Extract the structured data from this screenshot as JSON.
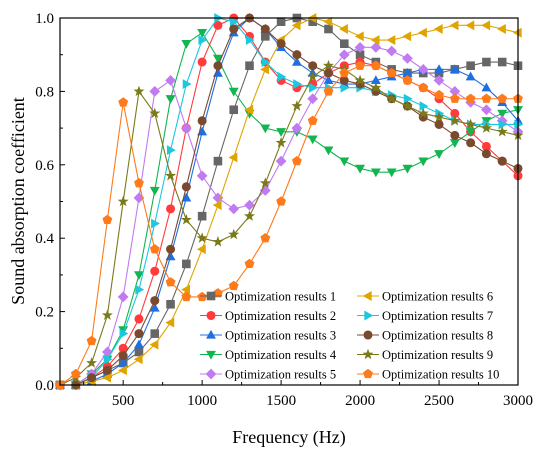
{
  "chart_data": {
    "type": "line",
    "xlabel": "Frequency (Hz)",
    "ylabel": "Sound absorption coefficient",
    "xlim": [
      100,
      3000
    ],
    "ylim": [
      0,
      1.0
    ],
    "xticks": [
      500,
      1000,
      1500,
      2000,
      2500,
      3000
    ],
    "yticks": [
      0.0,
      0.2,
      0.4,
      0.6,
      0.8,
      1.0
    ],
    "ytick_labels": [
      "0.0",
      "0.2",
      "0.4",
      "0.6",
      "0.8",
      "1.0"
    ],
    "grid": false,
    "legend_position": "bottom-right",
    "x": [
      100,
      200,
      300,
      400,
      500,
      600,
      700,
      800,
      900,
      1000,
      1100,
      1200,
      1300,
      1400,
      1500,
      1600,
      1700,
      1800,
      1900,
      2000,
      2100,
      2200,
      2300,
      2400,
      2500,
      2600,
      2700,
      2800,
      2900,
      3000
    ],
    "series": [
      {
        "name": "Optimization results 1",
        "color": "#666666",
        "marker": "square",
        "values": [
          0.0,
          0.0,
          0.02,
          0.04,
          0.06,
          0.09,
          0.14,
          0.22,
          0.33,
          0.46,
          0.61,
          0.75,
          0.87,
          0.95,
          0.99,
          1.0,
          0.99,
          0.97,
          0.93,
          0.9,
          0.88,
          0.86,
          0.85,
          0.85,
          0.85,
          0.86,
          0.87,
          0.88,
          0.88,
          0.87
        ]
      },
      {
        "name": "Optimization results 2",
        "color": "#FF3B3B",
        "marker": "circle",
        "values": [
          0.0,
          0.0,
          0.02,
          0.05,
          0.1,
          0.18,
          0.31,
          0.48,
          0.7,
          0.88,
          0.98,
          1.0,
          0.95,
          0.88,
          0.83,
          0.81,
          0.82,
          0.85,
          0.87,
          0.88,
          0.87,
          0.85,
          0.83,
          0.81,
          0.78,
          0.74,
          0.69,
          0.65,
          0.61,
          0.57
        ]
      },
      {
        "name": "Optimization results 3",
        "color": "#1F6FE0",
        "marker": "triangle-up",
        "values": [
          0.0,
          0.0,
          0.01,
          0.03,
          0.06,
          0.11,
          0.21,
          0.35,
          0.51,
          0.69,
          0.85,
          0.96,
          1.0,
          0.97,
          0.92,
          0.88,
          0.85,
          0.83,
          0.82,
          0.82,
          0.83,
          0.84,
          0.85,
          0.86,
          0.86,
          0.86,
          0.84,
          0.81,
          0.77,
          0.72
        ]
      },
      {
        "name": "Optimization results 4",
        "color": "#12B54F",
        "marker": "triangle-down",
        "values": [
          0.0,
          0.0,
          0.03,
          0.07,
          0.15,
          0.3,
          0.53,
          0.78,
          0.93,
          0.96,
          0.89,
          0.8,
          0.74,
          0.7,
          0.69,
          0.69,
          0.67,
          0.64,
          0.61,
          0.59,
          0.58,
          0.58,
          0.59,
          0.61,
          0.63,
          0.66,
          0.69,
          0.72,
          0.74,
          0.75
        ]
      },
      {
        "name": "Optimization results 5",
        "color": "#C07BF0",
        "marker": "diamond",
        "values": [
          0.0,
          0.0,
          0.03,
          0.09,
          0.24,
          0.51,
          0.8,
          0.83,
          0.7,
          0.57,
          0.51,
          0.48,
          0.49,
          0.53,
          0.61,
          0.7,
          0.78,
          0.85,
          0.9,
          0.92,
          0.92,
          0.91,
          0.89,
          0.86,
          0.83,
          0.8,
          0.77,
          0.75,
          0.72,
          0.69
        ]
      },
      {
        "name": "Optimization results 6",
        "color": "#E0A400",
        "marker": "triangle-left",
        "values": [
          0.0,
          0.0,
          0.01,
          0.02,
          0.04,
          0.07,
          0.11,
          0.17,
          0.26,
          0.37,
          0.49,
          0.62,
          0.75,
          0.86,
          0.94,
          0.98,
          1.0,
          0.99,
          0.97,
          0.95,
          0.94,
          0.94,
          0.95,
          0.96,
          0.97,
          0.98,
          0.98,
          0.98,
          0.97,
          0.96
        ]
      },
      {
        "name": "Optimization results 7",
        "color": "#1CC8DE",
        "marker": "triangle-right",
        "values": [
          0.0,
          0.0,
          0.02,
          0.07,
          0.14,
          0.26,
          0.44,
          0.64,
          0.82,
          0.94,
          1.0,
          0.99,
          0.94,
          0.88,
          0.84,
          0.82,
          0.81,
          0.81,
          0.81,
          0.81,
          0.8,
          0.79,
          0.78,
          0.76,
          0.74,
          0.72,
          0.71,
          0.71,
          0.71,
          0.71
        ]
      },
      {
        "name": "Optimization results 8",
        "color": "#7A4A2E",
        "marker": "circle",
        "values": [
          0.0,
          0.0,
          0.02,
          0.04,
          0.08,
          0.14,
          0.23,
          0.37,
          0.54,
          0.72,
          0.87,
          0.97,
          1.0,
          0.97,
          0.93,
          0.9,
          0.87,
          0.85,
          0.83,
          0.82,
          0.8,
          0.78,
          0.76,
          0.73,
          0.71,
          0.68,
          0.66,
          0.63,
          0.61,
          0.59
        ]
      },
      {
        "name": "Optimization results 9",
        "color": "#7A7A1A",
        "marker": "star",
        "values": [
          0.0,
          0.02,
          0.06,
          0.19,
          0.5,
          0.8,
          0.74,
          0.57,
          0.45,
          0.4,
          0.39,
          0.41,
          0.46,
          0.55,
          0.66,
          0.76,
          0.84,
          0.87,
          0.86,
          0.83,
          0.81,
          0.78,
          0.76,
          0.74,
          0.73,
          0.72,
          0.71,
          0.7,
          0.69,
          0.68
        ]
      },
      {
        "name": "Optimization results 10",
        "color": "#FF7A1A",
        "marker": "pentagon",
        "values": [
          0.0,
          0.03,
          0.12,
          0.45,
          0.77,
          0.55,
          0.37,
          0.28,
          0.24,
          0.24,
          0.25,
          0.27,
          0.33,
          0.4,
          0.5,
          0.61,
          0.72,
          0.8,
          0.85,
          0.87,
          0.87,
          0.85,
          0.83,
          0.81,
          0.79,
          0.78,
          0.78,
          0.78,
          0.78,
          0.78
        ]
      }
    ]
  }
}
